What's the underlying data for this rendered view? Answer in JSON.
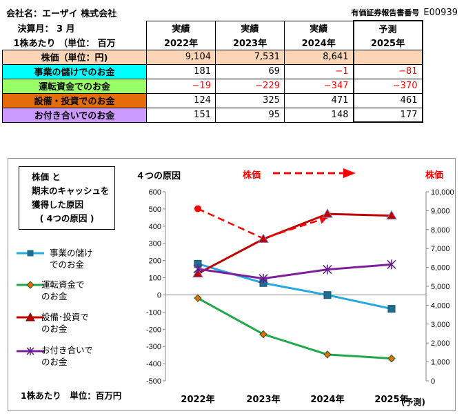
{
  "header": {
    "company": "会社名：エーザイ 株式会社",
    "settlement": "決算月： 3 月",
    "unit": "1株あたり （単位： 百万",
    "report_label": "有価証券報告書番号",
    "report_code": "E00939"
  },
  "table": {
    "kinds": [
      "実績",
      "実績",
      "実績",
      "予測"
    ],
    "years": [
      "2022年",
      "2023年",
      "2024年",
      "2025年"
    ],
    "rows": [
      {
        "label": "株価（単位：円)",
        "bg": "#fbd5b5",
        "values": [
          "9,104",
          "7,531",
          "8,641",
          ""
        ]
      },
      {
        "label": "事業の儲けでのお金",
        "bg": "#00ffff",
        "values": [
          "181",
          "69",
          "−1",
          "−81"
        ]
      },
      {
        "label": "運転資金でのお金",
        "bg": "#99ff66",
        "values": [
          "−19",
          "−229",
          "−347",
          "−370"
        ]
      },
      {
        "label": "設備・投資でのお金",
        "bg": "#e46c0a",
        "values": [
          "124",
          "325",
          "471",
          "461"
        ]
      },
      {
        "label": "お付き合いでのお金",
        "bg": "#cc99ff",
        "values": [
          "151",
          "95",
          "148",
          "177"
        ]
      }
    ]
  },
  "chart_box": {
    "title_lines": [
      "株価 と",
      "期末のキャッシュを",
      "獲得した原因",
      "( 4つの原因 )"
    ],
    "four_causes": "４つの原因",
    "stock_label_left": "株価",
    "stock_label_right": "株価",
    "unit_note": "1株あたり　単位：百万円",
    "forecast_note": "(予測)"
  },
  "legend": [
    {
      "line1": "事業の儲け",
      "line2": "でのお金",
      "color": "#26a8e0",
      "marker": "square"
    },
    {
      "line1": "運転資金で",
      "line2": "のお金",
      "color": "#1fa84a",
      "marker": "diamond"
    },
    {
      "line1": "設備･投資で",
      "line2": "のお金",
      "color": "#c00000",
      "marker": "triangle"
    },
    {
      "line1": "お付き合いで",
      "line2": "のお金",
      "color": "#7f1f9e",
      "marker": "star"
    }
  ],
  "chart_data": {
    "type": "line",
    "categories": [
      "2022年",
      "2023年",
      "2024年",
      "2025年"
    ],
    "series": [
      {
        "name": "事業の儲けでのお金",
        "values": [
          181,
          69,
          -1,
          -81
        ],
        "axis": "left",
        "color": "#26a8e0",
        "marker": "square"
      },
      {
        "name": "運転資金でのお金",
        "values": [
          -19,
          -229,
          -347,
          -370
        ],
        "axis": "left",
        "color": "#1fa84a",
        "marker": "diamond"
      },
      {
        "name": "設備・投資でのお金",
        "values": [
          124,
          325,
          471,
          461
        ],
        "axis": "left",
        "color": "#c00000",
        "marker": "triangle"
      },
      {
        "name": "お付き合いでのお金",
        "values": [
          151,
          95,
          148,
          177
        ],
        "axis": "left",
        "color": "#7f1f9e",
        "marker": "star"
      },
      {
        "name": "株価",
        "values": [
          9104,
          7531,
          8641,
          null
        ],
        "axis": "right",
        "color": "#ff0000",
        "dashed": true,
        "marker": "circle"
      }
    ],
    "y_left": {
      "min": -500,
      "max": 600,
      "step": 100,
      "ticks": [
        "600",
        "500",
        "400",
        "300",
        "200",
        "100",
        "0",
        "-100",
        "-200",
        "-300",
        "-400",
        "-500"
      ]
    },
    "y_right": {
      "min": 0,
      "max": 10000,
      "step": 1000,
      "ticks": [
        "10,000",
        "9,000",
        "8,000",
        "7,000",
        "6,000",
        "5,000",
        "4,000",
        "3,000",
        "2,000",
        "1,000",
        "0"
      ]
    },
    "grid": false,
    "legend_position": "left"
  }
}
